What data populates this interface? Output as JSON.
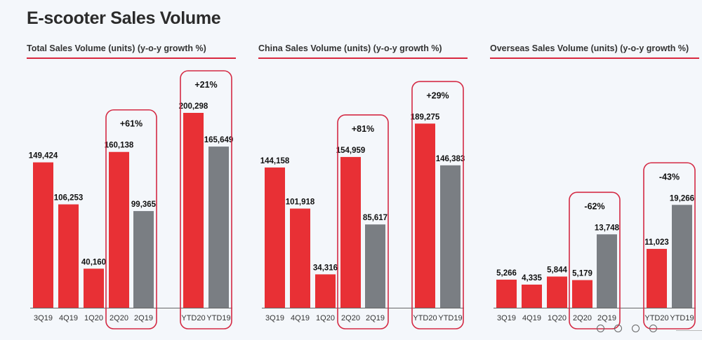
{
  "page": {
    "title": "E-scooter Sales Volume"
  },
  "colors": {
    "current": "#e83035",
    "prior": "#7a7e83",
    "highlight_box": "#d42a44",
    "rule": "#d8283f"
  },
  "chart_data": [
    {
      "type": "bar",
      "title": "Total Sales Volume (units) (y-o-y growth %)",
      "categories": [
        "3Q19",
        "4Q19",
        "1Q20",
        "2Q20",
        "2Q19",
        "YTD20",
        "YTD19"
      ],
      "values": [
        149424,
        106253,
        40160,
        160138,
        99365,
        200298,
        165649
      ],
      "labels": [
        "149,424",
        "106,253",
        "40,160",
        "160,138",
        "99,365",
        "200,298",
        "165,649"
      ],
      "bar_colors": [
        "current",
        "current",
        "current",
        "current",
        "prior",
        "current",
        "prior"
      ],
      "ylim": [
        0,
        200298
      ],
      "annotations": [
        {
          "categories": [
            "2Q20",
            "2Q19"
          ],
          "text": "+61%"
        },
        {
          "categories": [
            "YTD20",
            "YTD19"
          ],
          "text": "+21%"
        }
      ],
      "grid": false,
      "xlabel": "",
      "ylabel": ""
    },
    {
      "type": "bar",
      "title": "China Sales Volume (units) (y-o-y growth %)",
      "categories": [
        "3Q19",
        "4Q19",
        "1Q20",
        "2Q20",
        "2Q19",
        "YTD20",
        "YTD19"
      ],
      "values": [
        144158,
        101918,
        34316,
        154959,
        85617,
        189275,
        146383
      ],
      "labels": [
        "144,158",
        "101,918",
        "34,316",
        "154,959",
        "85,617",
        "189,275",
        "146,383"
      ],
      "bar_colors": [
        "current",
        "current",
        "current",
        "current",
        "prior",
        "current",
        "prior"
      ],
      "ylim": [
        0,
        200298
      ],
      "annotations": [
        {
          "categories": [
            "2Q20",
            "2Q19"
          ],
          "text": "+81%"
        },
        {
          "categories": [
            "YTD20",
            "YTD19"
          ],
          "text": "+29%"
        }
      ],
      "grid": false,
      "xlabel": "",
      "ylabel": ""
    },
    {
      "type": "bar",
      "title": "Overseas Sales Volume (units) (y-o-y growth %)",
      "categories": [
        "3Q19",
        "4Q19",
        "1Q20",
        "2Q20",
        "2Q19",
        "YTD20",
        "YTD19"
      ],
      "values": [
        5266,
        4335,
        5844,
        5179,
        13748,
        11023,
        19266
      ],
      "labels": [
        "5,266",
        "4,335",
        "5,844",
        "5,179",
        "13,748",
        "11,023",
        "19,266"
      ],
      "bar_colors": [
        "current",
        "current",
        "current",
        "current",
        "prior",
        "current",
        "prior"
      ],
      "ylim": [
        0,
        36500
      ],
      "annotations": [
        {
          "categories": [
            "2Q20",
            "2Q19"
          ],
          "text": "-62%"
        },
        {
          "categories": [
            "YTD20",
            "YTD19"
          ],
          "text": "-43%"
        }
      ],
      "grid": false,
      "xlabel": "",
      "ylabel": ""
    }
  ],
  "pager": {
    "count": 4
  }
}
